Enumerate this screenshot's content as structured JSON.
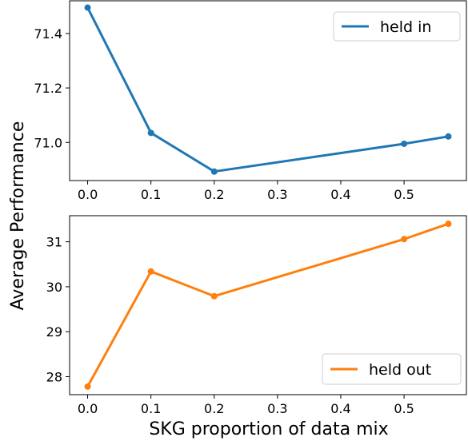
{
  "figure": {
    "xlabel": "SKG proportion of data mix",
    "ylabel": "Average Performance"
  },
  "chart_data": [
    {
      "type": "line",
      "x": [
        0.0,
        0.1,
        0.2,
        0.5,
        0.57
      ],
      "series": [
        {
          "name": "held in",
          "color": "#1f77b4",
          "values": [
            71.495,
            71.035,
            70.893,
            70.995,
            71.022
          ]
        }
      ],
      "xlim": [
        -0.0285,
        0.5985
      ],
      "ylim": [
        70.86,
        71.52
      ],
      "xticks": [
        0.0,
        0.1,
        0.2,
        0.3,
        0.4,
        0.5
      ],
      "xtick_labels": [
        "0.0",
        "0.1",
        "0.2",
        "0.3",
        "0.4",
        "0.5"
      ],
      "yticks": [
        71.0,
        71.2,
        71.4
      ],
      "ytick_labels": [
        "71.0",
        "71.2",
        "71.4"
      ],
      "legend_position": "top-right",
      "grid": false
    },
    {
      "type": "line",
      "x": [
        0.0,
        0.1,
        0.2,
        0.5,
        0.57
      ],
      "series": [
        {
          "name": "held out",
          "color": "#ff7f0e",
          "values": [
            27.78,
            30.34,
            29.79,
            31.06,
            31.4
          ]
        }
      ],
      "xlim": [
        -0.0285,
        0.5985
      ],
      "ylim": [
        27.6,
        31.58
      ],
      "xticks": [
        0.0,
        0.1,
        0.2,
        0.3,
        0.4,
        0.5
      ],
      "xtick_labels": [
        "0.0",
        "0.1",
        "0.2",
        "0.3",
        "0.4",
        "0.5"
      ],
      "yticks": [
        28,
        29,
        30,
        31
      ],
      "ytick_labels": [
        "28",
        "29",
        "30",
        "31"
      ],
      "legend_position": "bottom-right",
      "grid": false
    }
  ]
}
